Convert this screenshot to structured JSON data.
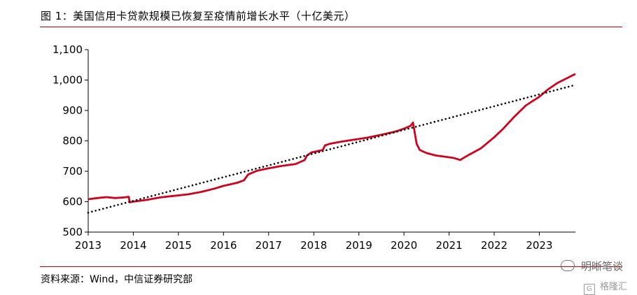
{
  "header": {
    "title": "图 1：美国信用卡贷款规模已恢复至疫情前增长水平（十亿美元）"
  },
  "footer": {
    "source": "资料来源：Wind，中信证券研究部"
  },
  "watermark": {
    "primary": "明晰笔谈",
    "secondary": "格隆汇"
  },
  "colors": {
    "series": "#d0021b",
    "trend": "#000000",
    "rule": "#c00000"
  },
  "chart_data": {
    "type": "line",
    "ylim": [
      500,
      1100
    ],
    "yticks": [
      500,
      600,
      700,
      800,
      900,
      1000,
      1100
    ],
    "ytick_labels": [
      "500",
      "600",
      "700",
      "800",
      "900",
      "1,000",
      "1,100"
    ],
    "xlim": [
      2013,
      2023.8
    ],
    "xticks": [
      2013,
      2014,
      2015,
      2016,
      2017,
      2018,
      2019,
      2020,
      2021,
      2022,
      2023
    ],
    "xtick_labels": [
      "2013",
      "2014",
      "2015",
      "2016",
      "2017",
      "2018",
      "2019",
      "2020",
      "2021",
      "2022",
      "2023"
    ],
    "grid": false,
    "series": [
      {
        "style": "solid",
        "color": "#d0021b",
        "x": [
          2013.0,
          2013.2,
          2013.4,
          2013.6,
          2013.8,
          2013.9,
          2013.92,
          2014.0,
          2014.3,
          2014.6,
          2014.9,
          2015.2,
          2015.5,
          2015.8,
          2016.0,
          2016.3,
          2016.45,
          2016.55,
          2016.75,
          2017.0,
          2017.3,
          2017.6,
          2017.8,
          2017.85,
          2017.95,
          2018.2,
          2018.25,
          2018.35,
          2018.6,
          2018.9,
          2019.2,
          2019.5,
          2019.8,
          2020.0,
          2020.15,
          2020.2,
          2020.28,
          2020.35,
          2020.5,
          2020.7,
          2020.9,
          2021.1,
          2021.25,
          2021.3,
          2021.45,
          2021.7,
          2022.0,
          2022.2,
          2022.45,
          2022.7,
          2023.0,
          2023.2,
          2023.4,
          2023.6,
          2023.8
        ],
        "y": [
          608,
          612,
          615,
          612,
          614,
          616,
          598,
          600,
          606,
          614,
          619,
          624,
          632,
          643,
          652,
          662,
          670,
          690,
          702,
          710,
          718,
          724,
          737,
          752,
          762,
          770,
          785,
          790,
          797,
          804,
          811,
          820,
          830,
          840,
          850,
          860,
          790,
          770,
          760,
          752,
          748,
          744,
          737,
          742,
          755,
          775,
          812,
          840,
          880,
          916,
          945,
          970,
          990,
          1005,
          1020
        ]
      },
      {
        "style": "dotted",
        "color": "#000000",
        "x": [
          2013.0,
          2023.8
        ],
        "y": [
          564,
          984
        ]
      }
    ]
  }
}
